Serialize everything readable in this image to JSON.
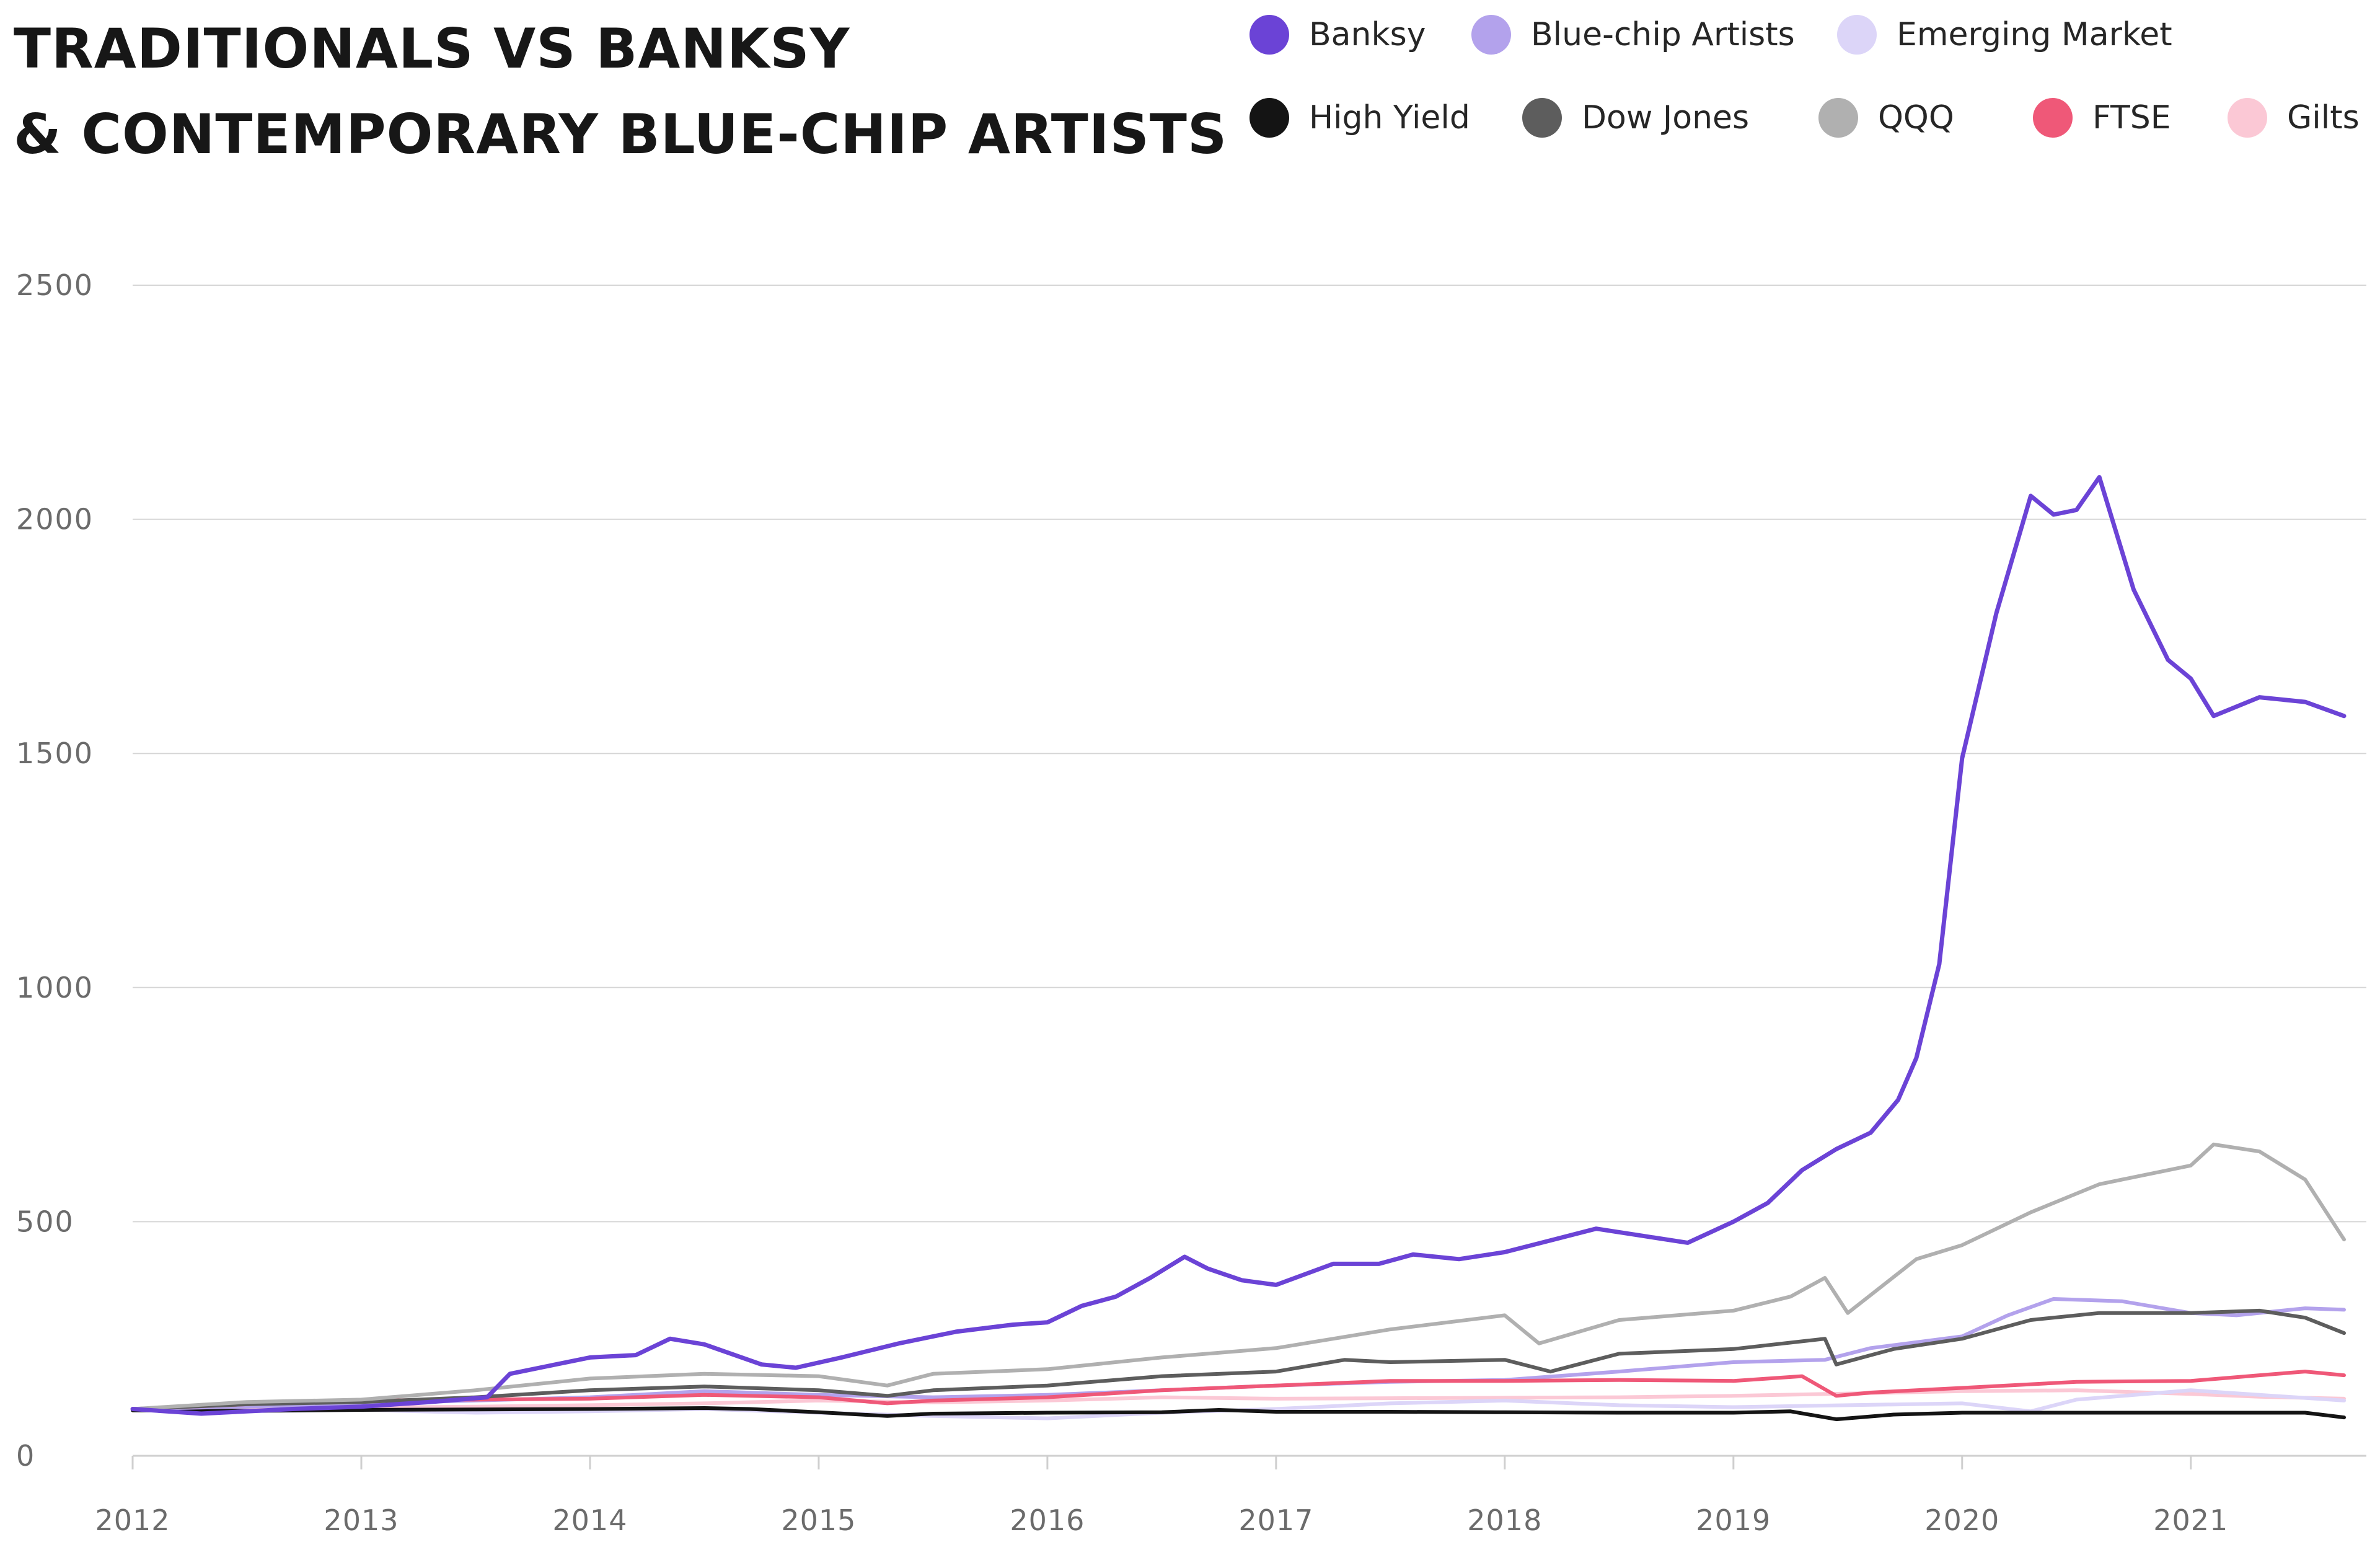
{
  "title": {
    "line1": "TRADITIONALS VS BANKSY",
    "line2": "& CONTEMPORARY BLUE-CHIP ARTISTS"
  },
  "legend": [
    {
      "name": "Banksy",
      "color": "#6b43d6"
    },
    {
      "name": "Blue-chip Artists",
      "color": "#b3a2ec"
    },
    {
      "name": "Emerging Market",
      "color": "#dcd5f8"
    },
    {
      "name": "High Yield",
      "color": "#141414"
    },
    {
      "name": "Dow Jones",
      "color": "#5d5d5d"
    },
    {
      "name": "QQQ",
      "color": "#b0b0b0"
    },
    {
      "name": "FTSE",
      "color": "#ef5878"
    },
    {
      "name": "Gilts",
      "color": "#fbc8d5"
    }
  ],
  "chart_data": {
    "type": "line",
    "title": "TRADITIONALS VS BANKSY & CONTEMPORARY BLUE-CHIP ARTISTS",
    "xlabel": "",
    "ylabel": "",
    "xlim": [
      2012.0,
      2021.67
    ],
    "ylim": [
      0,
      2500
    ],
    "yticks": [
      0,
      500,
      1000,
      1500,
      2000,
      2500
    ],
    "xticks": [
      "2012",
      "2013",
      "2014",
      "2015",
      "2016",
      "2017",
      "2018",
      "2019",
      "2020",
      "2021"
    ],
    "grid": "horizontal",
    "legend_position": "top-right",
    "series": [
      {
        "name": "Gilts",
        "color": "#fbc8d5",
        "x": [
          2012.0,
          2012.5,
          2013.0,
          2013.5,
          2014.0,
          2014.5,
          2015.0,
          2015.5,
          2016.0,
          2016.5,
          2017.0,
          2017.5,
          2018.0,
          2018.5,
          2019.0,
          2019.5,
          2020.0,
          2020.5,
          2021.0,
          2021.3,
          2021.67
        ],
        "values": [
          100,
          102,
          103,
          105,
          108,
          112,
          118,
          114,
          118,
          125,
          122,
          123,
          124,
          125,
          128,
          133,
          138,
          140,
          132,
          126,
          122
        ]
      },
      {
        "name": "Emerging Market",
        "color": "#dcd5f8",
        "x": [
          2012.0,
          2012.5,
          2013.0,
          2013.5,
          2014.0,
          2014.5,
          2015.0,
          2015.5,
          2016.0,
          2016.5,
          2017.0,
          2017.5,
          2018.0,
          2018.5,
          2019.0,
          2019.5,
          2020.0,
          2020.3,
          2020.5,
          2021.0,
          2021.3,
          2021.67
        ],
        "values": [
          100,
          95,
          98,
          92,
          95,
          100,
          92,
          85,
          80,
          92,
          100,
          112,
          118,
          108,
          104,
          108,
          112,
          95,
          120,
          140,
          130,
          118
        ]
      },
      {
        "name": "High Yield",
        "color": "#141414",
        "x": [
          2012.0,
          2012.5,
          2013.0,
          2013.5,
          2014.0,
          2014.5,
          2014.7,
          2015.0,
          2015.3,
          2015.5,
          2016.0,
          2016.5,
          2016.75,
          2017.0,
          2017.5,
          2018.0,
          2018.5,
          2019.0,
          2019.25,
          2019.45,
          2019.7,
          2020.0,
          2020.5,
          2021.0,
          2021.5,
          2021.67
        ],
        "values": [
          97,
          96,
          98,
          99,
          100,
          102,
          100,
          93,
          85,
          90,
          92,
          93,
          98,
          94,
          94,
          93,
          92,
          92,
          95,
          78,
          88,
          92,
          92,
          92,
          92,
          82
        ]
      },
      {
        "name": "Blue-chip Artists",
        "color": "#b3a2ec",
        "x": [
          2012.0,
          2012.5,
          2013.0,
          2013.5,
          2014.0,
          2014.5,
          2015.0,
          2015.5,
          2016.0,
          2016.5,
          2017.0,
          2017.5,
          2018.0,
          2018.5,
          2019.0,
          2019.4,
          2019.6,
          2020.0,
          2020.2,
          2020.4,
          2020.7,
          2021.0,
          2021.2,
          2021.5,
          2021.67
        ],
        "values": [
          100,
          105,
          112,
          118,
          125,
          138,
          130,
          125,
          130,
          140,
          150,
          158,
          162,
          180,
          200,
          205,
          230,
          255,
          300,
          335,
          330,
          305,
          300,
          315,
          312
        ]
      },
      {
        "name": "FTSE",
        "color": "#ef5878",
        "x": [
          2012.0,
          2012.5,
          2013.0,
          2013.5,
          2014.0,
          2014.5,
          2015.0,
          2015.3,
          2015.5,
          2016.0,
          2016.5,
          2017.0,
          2017.5,
          2018.0,
          2018.5,
          2019.0,
          2019.3,
          2019.45,
          2019.6,
          2020.0,
          2020.5,
          2021.0,
          2021.3,
          2021.5,
          2021.67
        ],
        "values": [
          100,
          110,
          118,
          120,
          122,
          130,
          125,
          112,
          118,
          125,
          140,
          150,
          160,
          160,
          162,
          160,
          170,
          128,
          135,
          145,
          158,
          160,
          172,
          180,
          172
        ]
      },
      {
        "name": "Dow Jones",
        "color": "#5d5d5d",
        "x": [
          2012.0,
          2012.5,
          2013.0,
          2013.5,
          2014.0,
          2014.5,
          2015.0,
          2015.3,
          2015.5,
          2016.0,
          2016.5,
          2017.0,
          2017.3,
          2017.5,
          2018.0,
          2018.2,
          2018.5,
          2019.0,
          2019.4,
          2019.45,
          2019.7,
          2020.0,
          2020.3,
          2020.6,
          2021.0,
          2021.3,
          2021.5,
          2021.67
        ],
        "values": [
          100,
          110,
          115,
          125,
          140,
          148,
          140,
          128,
          140,
          150,
          170,
          180,
          205,
          200,
          205,
          180,
          218,
          228,
          250,
          195,
          228,
          250,
          290,
          305,
          305,
          310,
          295,
          262
        ]
      },
      {
        "name": "QQQ",
        "color": "#b0b0b0",
        "x": [
          2012.0,
          2012.5,
          2013.0,
          2013.5,
          2014.0,
          2014.5,
          2015.0,
          2015.3,
          2015.5,
          2016.0,
          2016.5,
          2017.0,
          2017.5,
          2018.0,
          2018.15,
          2018.5,
          2019.0,
          2019.25,
          2019.4,
          2019.5,
          2019.8,
          2020.0,
          2020.3,
          2020.6,
          2021.0,
          2021.1,
          2021.3,
          2021.5,
          2021.67
        ],
        "values": [
          100,
          115,
          120,
          140,
          165,
          175,
          170,
          150,
          175,
          185,
          210,
          230,
          270,
          300,
          240,
          290,
          310,
          340,
          380,
          305,
          420,
          450,
          520,
          580,
          620,
          665,
          650,
          590,
          462
        ]
      },
      {
        "name": "Banksy",
        "color": "#6b43d6",
        "x": [
          2012.0,
          2012.3,
          2012.7,
          2013.0,
          2013.3,
          2013.55,
          2013.65,
          2013.85,
          2014.0,
          2014.2,
          2014.35,
          2014.5,
          2014.75,
          2014.9,
          2015.1,
          2015.35,
          2015.6,
          2015.85,
          2016.0,
          2016.15,
          2016.3,
          2016.45,
          2016.6,
          2016.7,
          2016.85,
          2017.0,
          2017.25,
          2017.45,
          2017.6,
          2017.8,
          2018.0,
          2018.2,
          2018.4,
          2018.6,
          2018.8,
          2019.0,
          2019.15,
          2019.3,
          2019.45,
          2019.6,
          2019.72,
          2019.8,
          2019.9,
          2020.0,
          2020.15,
          2020.3,
          2020.4,
          2020.5,
          2020.6,
          2020.75,
          2020.9,
          2021.0,
          2021.1,
          2021.3,
          2021.5,
          2021.67
        ],
        "values": [
          100,
          90,
          100,
          105,
          115,
          125,
          175,
          195,
          210,
          215,
          250,
          238,
          195,
          188,
          210,
          240,
          265,
          280,
          285,
          320,
          340,
          380,
          425,
          400,
          375,
          365,
          410,
          410,
          430,
          420,
          435,
          460,
          485,
          470,
          455,
          500,
          540,
          610,
          655,
          690,
          760,
          850,
          1050,
          1490,
          1800,
          2050,
          2010,
          2020,
          2090,
          1850,
          1700,
          1660,
          1580,
          1620,
          1610,
          1580
        ]
      }
    ]
  }
}
